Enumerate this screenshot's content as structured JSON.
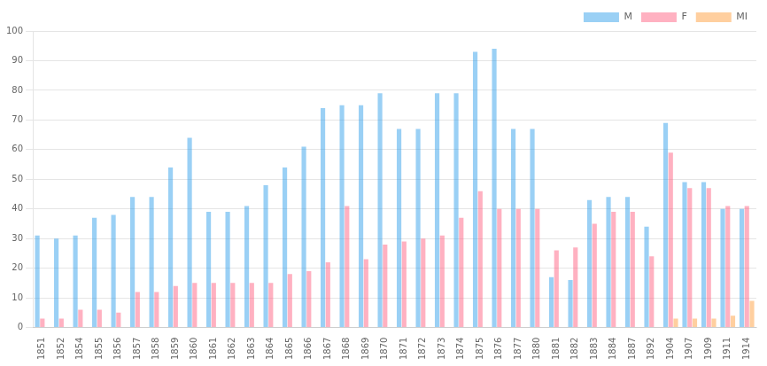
{
  "chart_data": {
    "type": "bar",
    "categories": [
      "1851",
      "1852",
      "1854",
      "1855",
      "1856",
      "1857",
      "1858",
      "1859",
      "1860",
      "1861",
      "1862",
      "1863",
      "1864",
      "1865",
      "1866",
      "1867",
      "1868",
      "1869",
      "1870",
      "1871",
      "1872",
      "1873",
      "1874",
      "1875",
      "1876",
      "1877",
      "1880",
      "1881",
      "1882",
      "1883",
      "1884",
      "1887",
      "1892",
      "1904",
      "1907",
      "1909",
      "1911",
      "1914"
    ],
    "series": [
      {
        "name": "M",
        "values": [
          31,
          30,
          31,
          37,
          38,
          44,
          44,
          54,
          64,
          39,
          39,
          41,
          48,
          54,
          61,
          74,
          75,
          75,
          79,
          67,
          67,
          79,
          79,
          93,
          94,
          67,
          67,
          17,
          16,
          43,
          44,
          44,
          34,
          69,
          49,
          49,
          40,
          40
        ]
      },
      {
        "name": "F",
        "values": [
          3,
          3,
          6,
          6,
          5,
          12,
          12,
          14,
          15,
          15,
          15,
          15,
          15,
          18,
          19,
          22,
          41,
          23,
          28,
          29,
          30,
          31,
          37,
          46,
          40,
          40,
          40,
          26,
          27,
          35,
          39,
          39,
          24,
          59,
          47,
          47,
          41,
          41
        ]
      },
      {
        "name": "MI",
        "values": [
          0,
          0,
          0,
          0,
          0,
          0,
          0,
          0,
          0,
          0,
          0,
          0,
          0,
          0,
          0,
          0,
          0,
          0,
          0,
          0,
          0,
          0,
          0,
          0,
          0,
          0,
          0,
          0,
          0,
          0,
          0,
          0,
          0,
          3,
          3,
          3,
          4,
          9
        ]
      }
    ],
    "ylim": [
      0,
      100
    ],
    "yticks": [
      0,
      10,
      20,
      30,
      40,
      50,
      60,
      70,
      80,
      90,
      100
    ],
    "grid": true,
    "legend": "upper right"
  }
}
